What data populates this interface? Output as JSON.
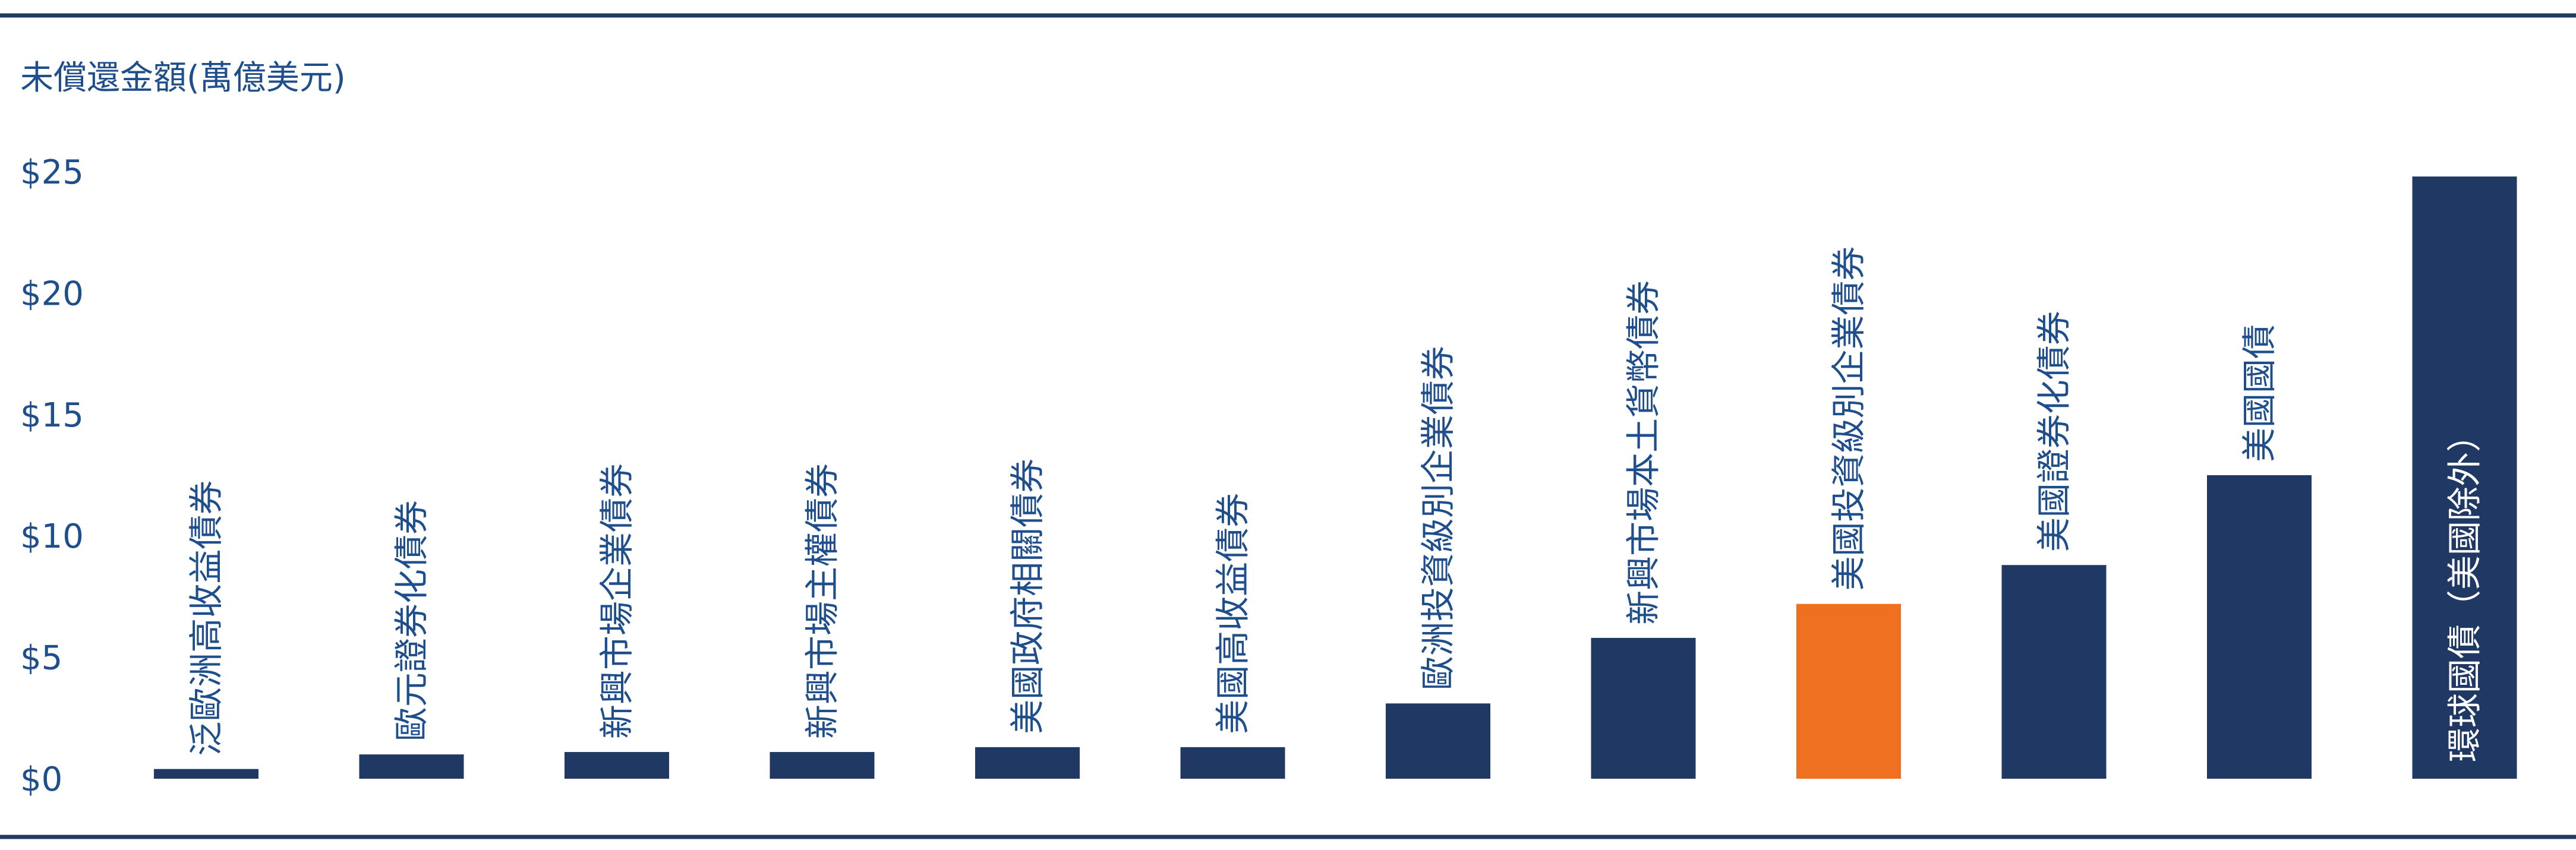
{
  "chart_data": {
    "type": "bar",
    "ylabel": "未償還金額(萬億美元)",
    "yticks": [
      "$0",
      "$5",
      "$10",
      "$15",
      "$20",
      "$25"
    ],
    "ylim": [
      0,
      25
    ],
    "categories": [
      "泛歐洲高收益債券",
      "歐元證券化債券",
      "新興市場企業債券",
      "新興市場主權債券",
      "美國政府相關債券",
      "美國高收益債券",
      "歐洲投資級別企業債券",
      "新興市場本土貨幣債券",
      "美國投資級別企業債券",
      "美國證券化債券",
      "美國國債",
      "環球國債（美國除外）"
    ],
    "values": [
      0.4,
      1.0,
      1.1,
      1.1,
      1.3,
      1.3,
      3.1,
      5.8,
      7.2,
      8.8,
      12.5,
      24.8
    ],
    "highlight_index": 8,
    "label_inside_index": 11,
    "legend": "none",
    "grid": false
  },
  "colors": {
    "bar": "#1f3864",
    "highlight": "#f07022",
    "label_text": "#1f4e8c",
    "inside_label_text": "#ffffff",
    "tick_text": "#1f4e8c",
    "ylabel_text": "#1f4e8c",
    "frame_line": "#1f3864"
  }
}
